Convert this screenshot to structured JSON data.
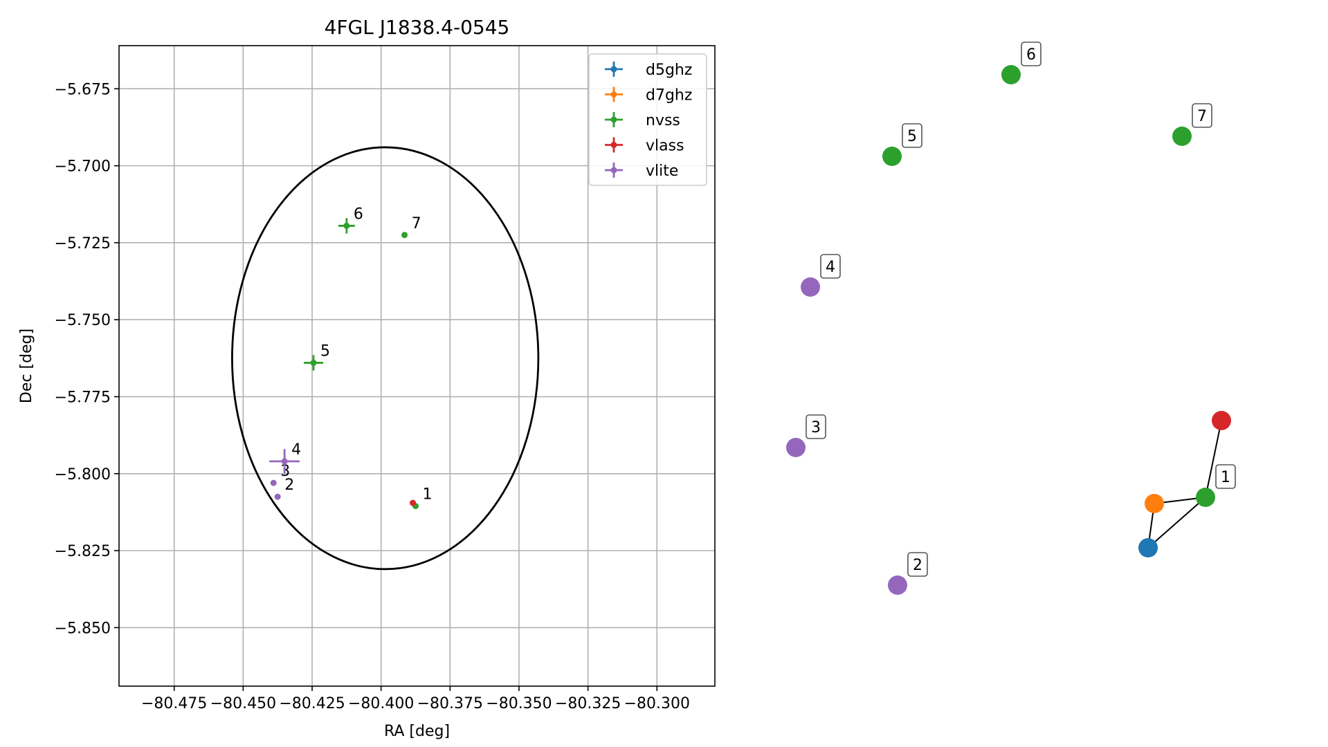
{
  "chart_data": [
    {
      "type": "scatter",
      "title": "4FGL J1838.4-0545",
      "xlabel": "RA [deg]",
      "ylabel": "Dec [deg]",
      "xlim": [
        -80.495,
        -80.279
      ],
      "ylim": [
        -5.869,
        -5.661
      ],
      "x_ticks": [
        -80.475,
        -80.45,
        -80.425,
        -80.4,
        -80.375,
        -80.35,
        -80.325,
        -80.3
      ],
      "x_tick_labels": [
        "−80.475",
        "−80.450",
        "−80.425",
        "−80.400",
        "−80.375",
        "−80.350",
        "−80.325",
        "−80.300"
      ],
      "y_ticks": [
        -5.675,
        -5.7,
        -5.725,
        -5.75,
        -5.775,
        -5.8,
        -5.825,
        -5.85
      ],
      "y_tick_labels": [
        "−5.675",
        "−5.700",
        "−5.725",
        "−5.750",
        "−5.775",
        "−5.800",
        "−5.825",
        "−5.850"
      ],
      "grid": true,
      "legend_position": "top-right",
      "ellipse": {
        "center": [
          -80.3985,
          -5.7625
        ],
        "ra_semi": 0.0555,
        "dec_semi": 0.0685,
        "color": "#000000"
      },
      "series": [
        {
          "name": "d5ghz",
          "color": "#1f77b4",
          "points": []
        },
        {
          "name": "d7ghz",
          "color": "#ff7f0e",
          "points": []
        },
        {
          "name": "nvss",
          "color": "#2ca02c",
          "points": [
            {
              "label": "1",
              "x": -80.3875,
              "y": -5.8105,
              "xerr": 0.0,
              "yerr": 0.0
            },
            {
              "label": "5",
              "x": -80.4245,
              "y": -5.764,
              "xerr": 0.0035,
              "yerr": 0.0025
            },
            {
              "label": "6",
              "x": -80.4125,
              "y": -5.7195,
              "xerr": 0.003,
              "yerr": 0.0025
            },
            {
              "label": "7",
              "x": -80.3915,
              "y": -5.7225,
              "xerr": 0.0,
              "yerr": 0.0
            }
          ]
        },
        {
          "name": "vlass",
          "color": "#d62728",
          "points": [
            {
              "label": "1",
              "x": -80.3885,
              "y": -5.8095,
              "xerr": 0.0,
              "yerr": 0.0
            }
          ]
        },
        {
          "name": "vlite",
          "color": "#9467bd",
          "points": [
            {
              "label": "2",
              "x": -80.4375,
              "y": -5.8075,
              "xerr": 0.0,
              "yerr": 0.0
            },
            {
              "label": "3",
              "x": -80.439,
              "y": -5.803,
              "xerr": 0.0,
              "yerr": 0.0
            },
            {
              "label": "4",
              "x": -80.435,
              "y": -5.796,
              "xerr": 0.0055,
              "yerr": 0.004
            }
          ]
        }
      ]
    },
    {
      "type": "graph",
      "axes": false,
      "nodes": [
        {
          "id": "d5ghz-1",
          "color": "#1f77b4",
          "label": ""
        },
        {
          "id": "d7ghz-1",
          "color": "#ff7f0e",
          "label": ""
        },
        {
          "id": "nvss-1",
          "color": "#2ca02c",
          "label": "1"
        },
        {
          "id": "vlass-1",
          "color": "#d62728",
          "label": ""
        },
        {
          "id": "vlite-2",
          "color": "#9467bd",
          "label": "2"
        },
        {
          "id": "vlite-3",
          "color": "#9467bd",
          "label": "3"
        },
        {
          "id": "vlite-4",
          "color": "#9467bd",
          "label": "4"
        },
        {
          "id": "nvss-5",
          "color": "#2ca02c",
          "label": "5"
        },
        {
          "id": "nvss-6",
          "color": "#2ca02c",
          "label": "6"
        },
        {
          "id": "nvss-7",
          "color": "#2ca02c",
          "label": "7"
        }
      ],
      "edges": [
        [
          "d5ghz-1",
          "d7ghz-1"
        ],
        [
          "d5ghz-1",
          "nvss-1"
        ],
        [
          "d7ghz-1",
          "nvss-1"
        ],
        [
          "nvss-1",
          "vlass-1"
        ]
      ]
    }
  ]
}
